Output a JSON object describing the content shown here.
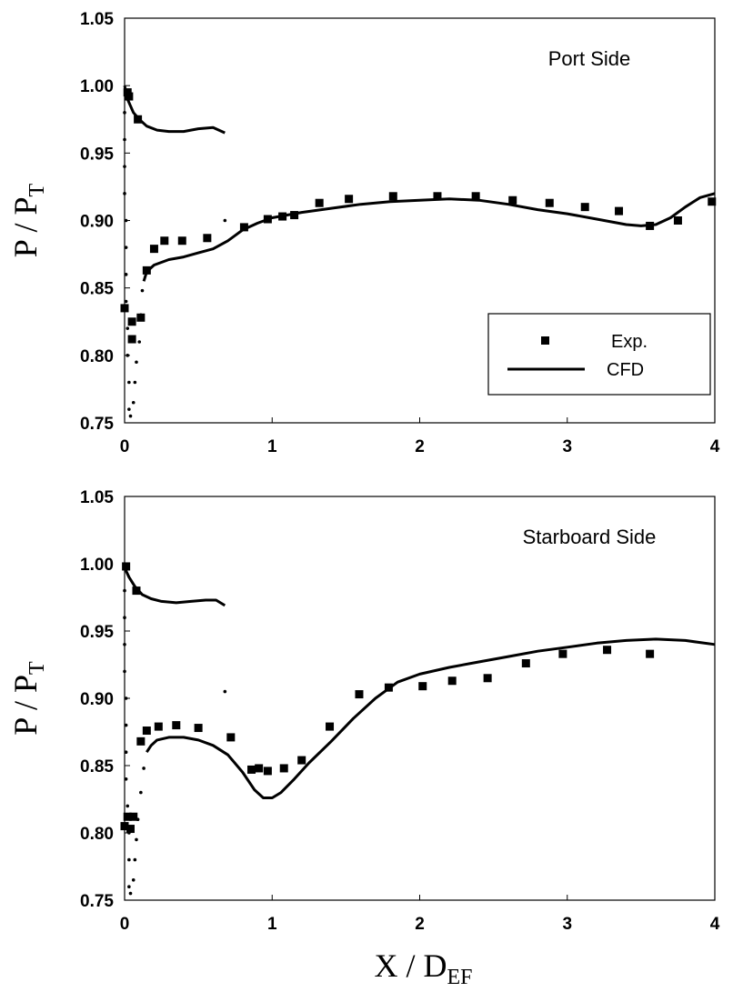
{
  "chart_data": [
    {
      "type": "scatter",
      "panel": "top",
      "annotation": "Port Side",
      "xlabel": "",
      "ylabel": "P / P_T",
      "xlim": [
        0,
        4
      ],
      "ylim": [
        0.75,
        1.05
      ],
      "x_ticks": [
        "0",
        "1",
        "2",
        "3",
        "4"
      ],
      "y_ticks": [
        "0.75",
        "0.80",
        "0.85",
        "0.90",
        "0.95",
        "1.00",
        "1.05"
      ],
      "grid": false,
      "legend": {
        "position": "lower-right",
        "entries": [
          "Exp.",
          "CFD"
        ]
      },
      "series": [
        {
          "name": "Exp.",
          "marker": "square",
          "points": [
            [
              0.0,
              0.835
            ],
            [
              0.02,
              0.995
            ],
            [
              0.03,
              0.992
            ],
            [
              0.05,
              0.825
            ],
            [
              0.05,
              0.812
            ],
            [
              0.09,
              0.975
            ],
            [
              0.11,
              0.828
            ],
            [
              0.15,
              0.863
            ],
            [
              0.2,
              0.879
            ],
            [
              0.27,
              0.885
            ],
            [
              0.39,
              0.885
            ],
            [
              0.56,
              0.887
            ],
            [
              0.81,
              0.895
            ],
            [
              0.97,
              0.901
            ],
            [
              1.07,
              0.903
            ],
            [
              1.15,
              0.904
            ],
            [
              1.32,
              0.913
            ],
            [
              1.52,
              0.916
            ],
            [
              1.82,
              0.918
            ],
            [
              2.12,
              0.918
            ],
            [
              2.38,
              0.918
            ],
            [
              2.63,
              0.915
            ],
            [
              2.88,
              0.913
            ],
            [
              3.12,
              0.91
            ],
            [
              3.35,
              0.907
            ],
            [
              3.56,
              0.896
            ],
            [
              3.75,
              0.9
            ],
            [
              3.98,
              0.914
            ]
          ]
        },
        {
          "name": "CFD",
          "style": "line",
          "segments": [
            [
              [
                0.0,
                1.0
              ],
              [
                0.02,
                0.99
              ],
              [
                0.06,
                0.98
              ],
              [
                0.1,
                0.975
              ],
              [
                0.15,
                0.97
              ],
              [
                0.22,
                0.967
              ],
              [
                0.3,
                0.966
              ],
              [
                0.4,
                0.966
              ],
              [
                0.5,
                0.968
              ],
              [
                0.6,
                0.969
              ],
              [
                0.68,
                0.965
              ]
            ],
            [
              [
                0.13,
                0.855
              ],
              [
                0.15,
                0.862
              ],
              [
                0.2,
                0.867
              ],
              [
                0.3,
                0.871
              ],
              [
                0.4,
                0.873
              ],
              [
                0.5,
                0.876
              ],
              [
                0.6,
                0.879
              ],
              [
                0.7,
                0.885
              ],
              [
                0.8,
                0.893
              ],
              [
                0.9,
                0.898
              ],
              [
                1.0,
                0.902
              ],
              [
                1.2,
                0.906
              ],
              [
                1.4,
                0.909
              ],
              [
                1.6,
                0.912
              ],
              [
                1.8,
                0.914
              ],
              [
                2.0,
                0.915
              ],
              [
                2.2,
                0.916
              ],
              [
                2.4,
                0.915
              ],
              [
                2.6,
                0.912
              ],
              [
                2.8,
                0.908
              ],
              [
                3.0,
                0.905
              ],
              [
                3.2,
                0.901
              ],
              [
                3.4,
                0.897
              ],
              [
                3.5,
                0.896
              ],
              [
                3.6,
                0.897
              ],
              [
                3.7,
                0.902
              ],
              [
                3.8,
                0.91
              ],
              [
                3.9,
                0.917
              ],
              [
                4.0,
                0.92
              ]
            ]
          ],
          "scatter_points": [
            [
              0.0,
              0.98
            ],
            [
              0.0,
              0.96
            ],
            [
              0.0,
              0.94
            ],
            [
              0.0,
              0.92
            ],
            [
              0.01,
              0.9
            ],
            [
              0.01,
              0.88
            ],
            [
              0.01,
              0.86
            ],
            [
              0.01,
              0.84
            ],
            [
              0.02,
              0.82
            ],
            [
              0.02,
              0.8
            ],
            [
              0.03,
              0.78
            ],
            [
              0.03,
              0.76
            ],
            [
              0.04,
              0.755
            ],
            [
              0.06,
              0.765
            ],
            [
              0.07,
              0.78
            ],
            [
              0.08,
              0.795
            ],
            [
              0.1,
              0.81
            ],
            [
              0.11,
              0.83
            ],
            [
              0.12,
              0.848
            ],
            [
              0.68,
              0.9
            ]
          ]
        }
      ]
    },
    {
      "type": "scatter",
      "panel": "bottom",
      "annotation": "Starboard Side",
      "xlabel": "X / D_EF",
      "ylabel": "P / P_T",
      "xlim": [
        0,
        4
      ],
      "ylim": [
        0.75,
        1.05
      ],
      "x_ticks": [
        "0",
        "1",
        "2",
        "3",
        "4"
      ],
      "y_ticks": [
        "0.75",
        "0.80",
        "0.85",
        "0.90",
        "0.95",
        "1.00",
        "1.05"
      ],
      "grid": false,
      "series": [
        {
          "name": "Exp.",
          "marker": "square",
          "points": [
            [
              0.0,
              0.805
            ],
            [
              0.01,
              0.998
            ],
            [
              0.02,
              0.812
            ],
            [
              0.04,
              0.803
            ],
            [
              0.06,
              0.812
            ],
            [
              0.08,
              0.98
            ],
            [
              0.11,
              0.868
            ],
            [
              0.15,
              0.876
            ],
            [
              0.23,
              0.879
            ],
            [
              0.35,
              0.88
            ],
            [
              0.5,
              0.878
            ],
            [
              0.72,
              0.871
            ],
            [
              0.86,
              0.847
            ],
            [
              0.91,
              0.848
            ],
            [
              0.97,
              0.846
            ],
            [
              1.08,
              0.848
            ],
            [
              1.2,
              0.854
            ],
            [
              1.39,
              0.879
            ],
            [
              1.59,
              0.903
            ],
            [
              1.79,
              0.908
            ],
            [
              2.02,
              0.909
            ],
            [
              2.22,
              0.913
            ],
            [
              2.46,
              0.915
            ],
            [
              2.72,
              0.926
            ],
            [
              2.97,
              0.933
            ],
            [
              3.27,
              0.936
            ],
            [
              3.56,
              0.933
            ]
          ]
        },
        {
          "name": "CFD",
          "style": "line",
          "segments": [
            [
              [
                0.0,
                0.997
              ],
              [
                0.03,
                0.99
              ],
              [
                0.07,
                0.983
              ],
              [
                0.12,
                0.977
              ],
              [
                0.18,
                0.974
              ],
              [
                0.25,
                0.972
              ],
              [
                0.35,
                0.971
              ],
              [
                0.45,
                0.972
              ],
              [
                0.55,
                0.973
              ],
              [
                0.62,
                0.973
              ],
              [
                0.68,
                0.969
              ]
            ],
            [
              [
                0.15,
                0.86
              ],
              [
                0.18,
                0.865
              ],
              [
                0.22,
                0.869
              ],
              [
                0.3,
                0.871
              ],
              [
                0.4,
                0.871
              ],
              [
                0.5,
                0.869
              ],
              [
                0.6,
                0.865
              ],
              [
                0.7,
                0.858
              ],
              [
                0.8,
                0.845
              ],
              [
                0.88,
                0.832
              ],
              [
                0.94,
                0.826
              ],
              [
                1.0,
                0.826
              ],
              [
                1.06,
                0.83
              ],
              [
                1.15,
                0.84
              ],
              [
                1.25,
                0.852
              ],
              [
                1.4,
                0.868
              ],
              [
                1.55,
                0.885
              ],
              [
                1.7,
                0.9
              ],
              [
                1.85,
                0.912
              ],
              [
                2.0,
                0.918
              ],
              [
                2.2,
                0.923
              ],
              [
                2.4,
                0.927
              ],
              [
                2.6,
                0.931
              ],
              [
                2.8,
                0.935
              ],
              [
                3.0,
                0.938
              ],
              [
                3.2,
                0.941
              ],
              [
                3.4,
                0.943
              ],
              [
                3.6,
                0.944
              ],
              [
                3.8,
                0.943
              ],
              [
                4.0,
                0.94
              ]
            ]
          ],
          "scatter_points": [
            [
              0.0,
              0.98
            ],
            [
              0.0,
              0.96
            ],
            [
              0.0,
              0.94
            ],
            [
              0.0,
              0.92
            ],
            [
              0.01,
              0.9
            ],
            [
              0.01,
              0.88
            ],
            [
              0.01,
              0.86
            ],
            [
              0.01,
              0.84
            ],
            [
              0.02,
              0.82
            ],
            [
              0.03,
              0.8
            ],
            [
              0.03,
              0.78
            ],
            [
              0.03,
              0.76
            ],
            [
              0.04,
              0.755
            ],
            [
              0.06,
              0.765
            ],
            [
              0.07,
              0.78
            ],
            [
              0.08,
              0.795
            ],
            [
              0.09,
              0.81
            ],
            [
              0.11,
              0.83
            ],
            [
              0.13,
              0.848
            ],
            [
              0.68,
              0.905
            ]
          ]
        }
      ]
    }
  ]
}
